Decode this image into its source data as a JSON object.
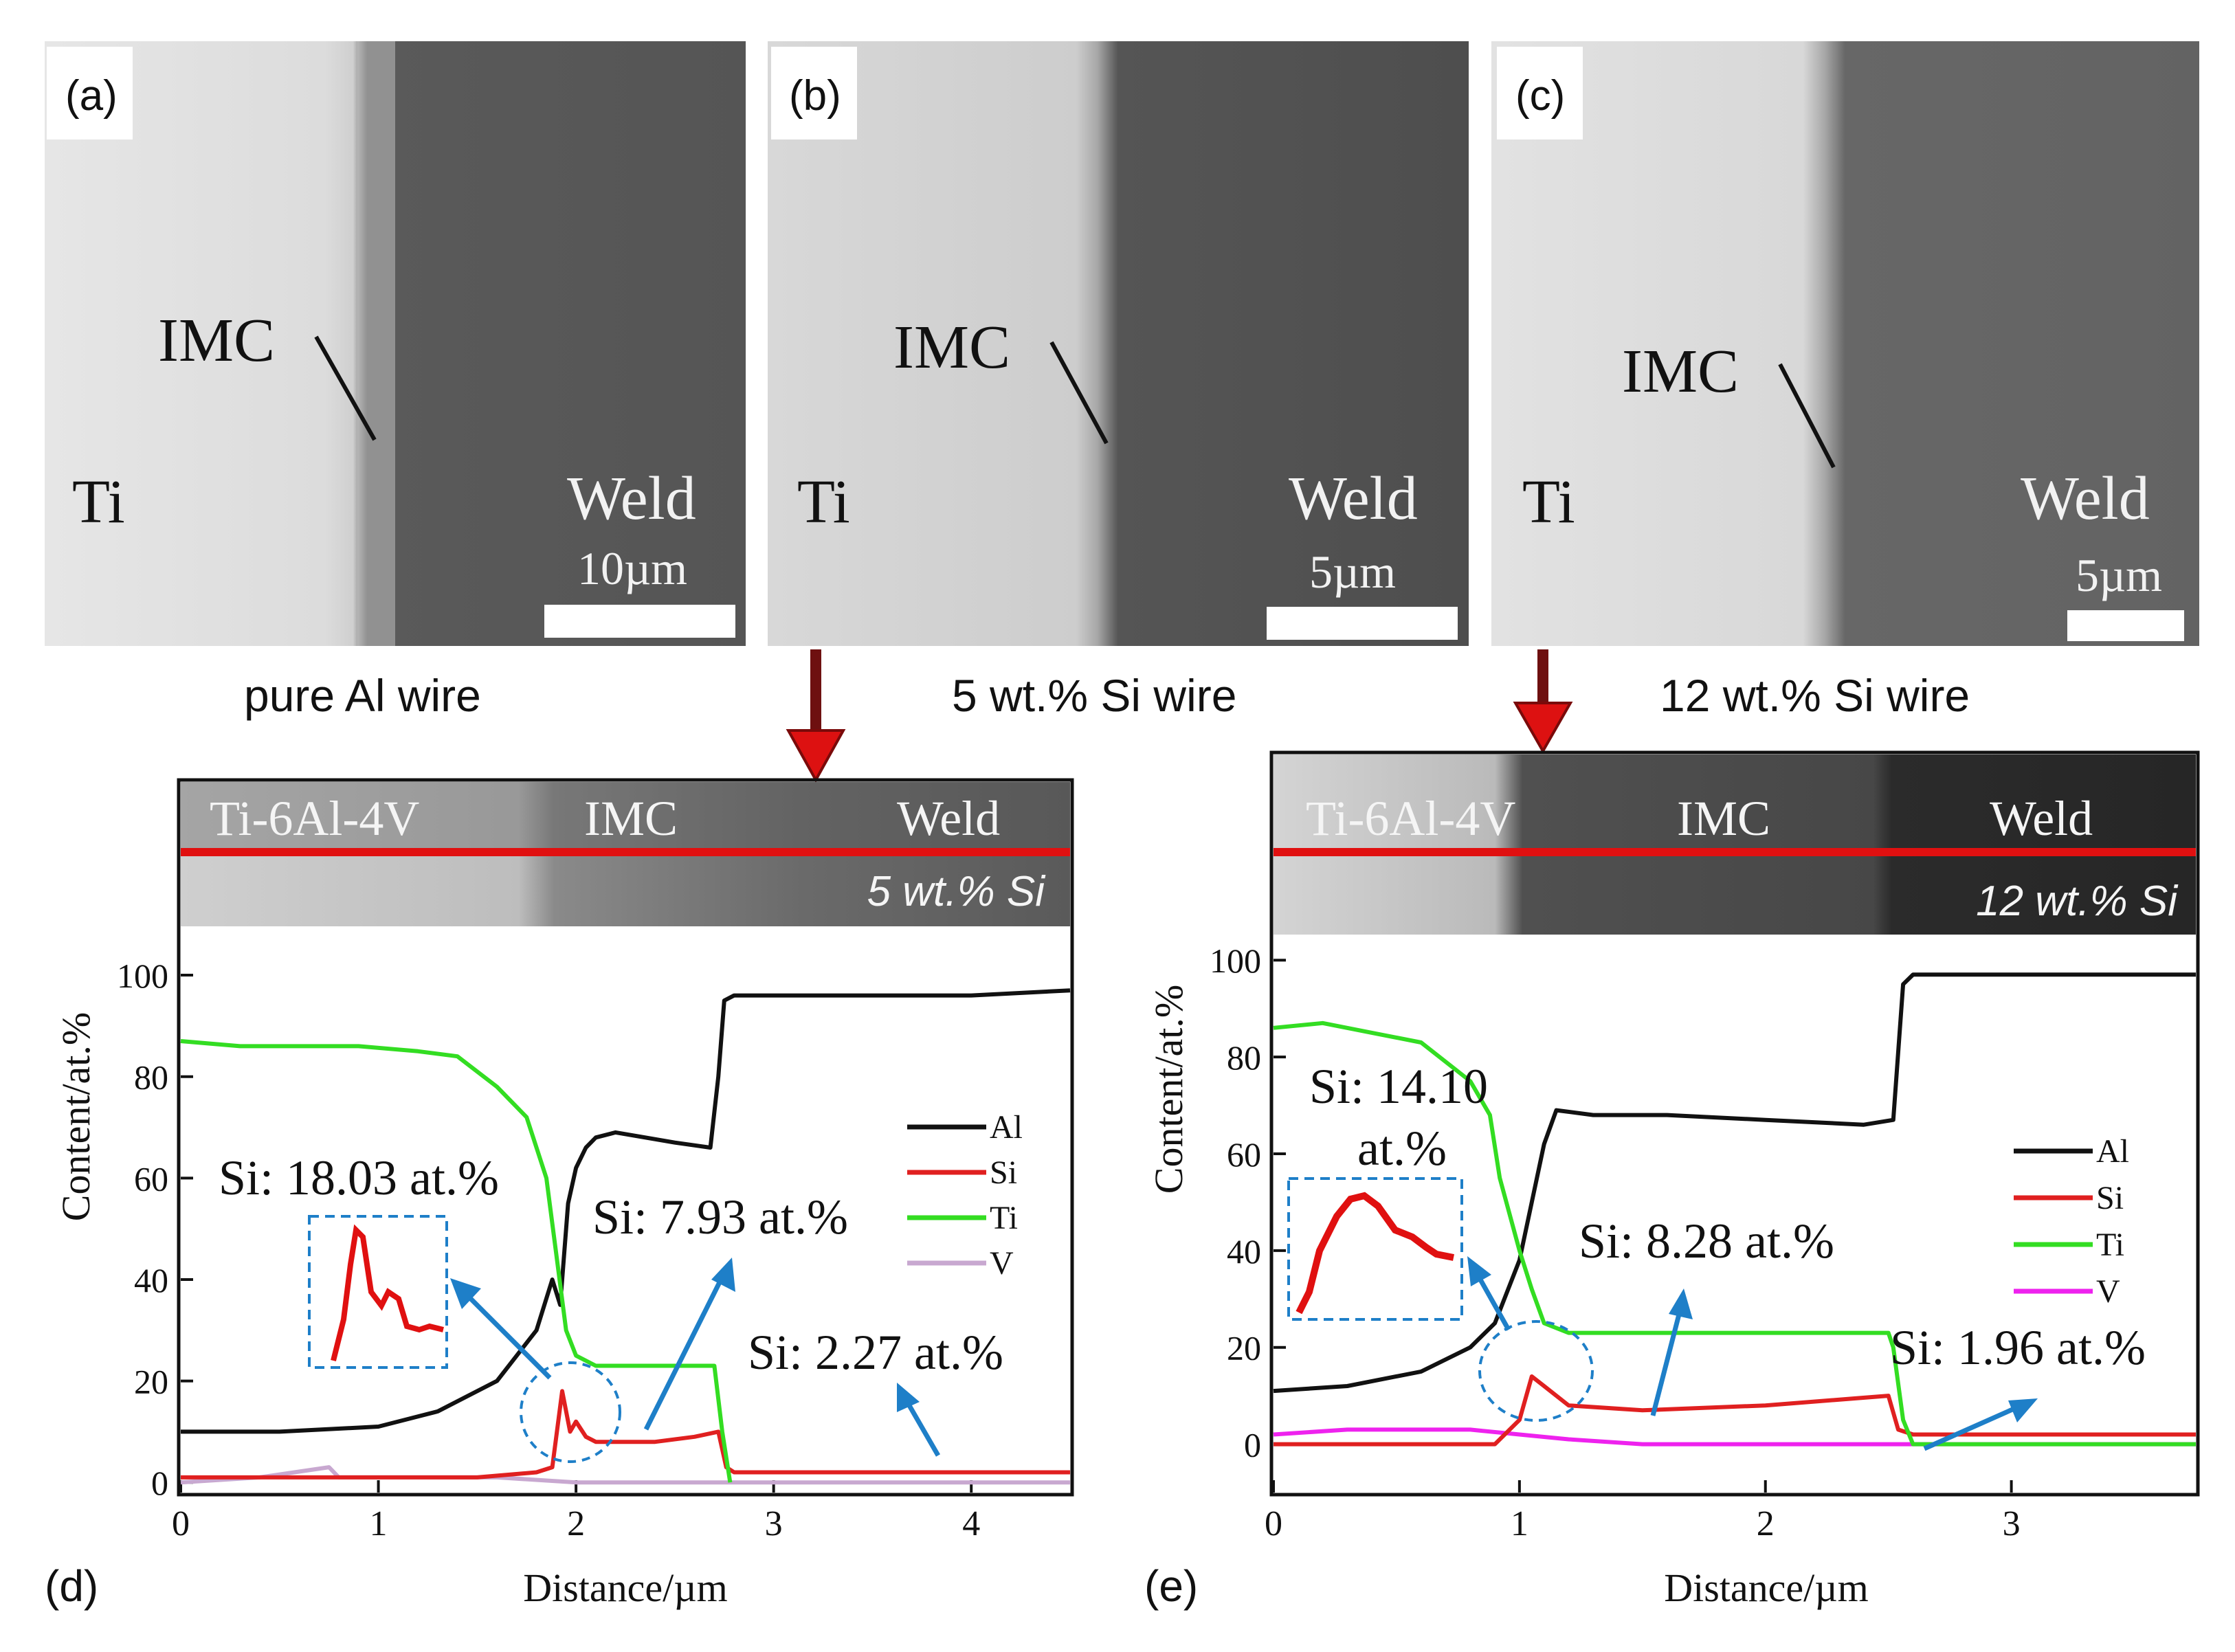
{
  "figure": {
    "panels": [
      {
        "letter": "(a)",
        "phase_left": "Ti",
        "phase_right": "Weld",
        "interface_label": "IMC",
        "scale_bar": "10µm",
        "caption": "pure Al wire"
      },
      {
        "letter": "(b)",
        "phase_left": "Ti",
        "phase_right": "Weld",
        "interface_label": "IMC",
        "scale_bar": "5µm",
        "caption": "5 wt.% Si wire"
      },
      {
        "letter": "(c)",
        "phase_left": "Ti",
        "phase_right": "Weld",
        "interface_label": "IMC",
        "scale_bar": "5µm",
        "caption": "12 wt.% Si wire"
      }
    ],
    "colors": {
      "Al": "#111111",
      "Si": "#e02020",
      "Ti": "#33dd22",
      "V_d": "#c8a8d0",
      "V_e": "#ee22ee",
      "arrow": "#1e7fc8",
      "red_line": "#e01010",
      "red_arrow": "#dd1111"
    }
  },
  "chart_data": [
    {
      "type": "line",
      "panel_letter": "(d)",
      "strip": {
        "left": "Ti-6Al-4V",
        "middle": "IMC",
        "right": "Weld",
        "tag": "5 wt.% Si"
      },
      "xlabel": "Distance/µm",
      "ylabel": "Content/at.%",
      "xlim": [
        0,
        4.5
      ],
      "ylim": [
        -2,
        108
      ],
      "xticks": [
        "0",
        "1",
        "2",
        "3",
        "4"
      ],
      "xtick_values": [
        0,
        1,
        2,
        3,
        4
      ],
      "yticks": [
        "0",
        "20",
        "40",
        "60",
        "80",
        "100"
      ],
      "ytick_values": [
        0,
        20,
        40,
        60,
        80,
        100
      ],
      "legend": [
        "Al",
        "Si",
        "Ti",
        "V"
      ],
      "series": [
        {
          "name": "Al",
          "x": [
            0,
            0.5,
            1.0,
            1.3,
            1.6,
            1.8,
            1.88,
            1.92,
            1.96,
            2.0,
            2.05,
            2.1,
            2.2,
            2.5,
            2.68,
            2.72,
            2.75,
            2.8,
            3.0,
            3.5,
            4.0,
            4.5
          ],
          "y": [
            10,
            10,
            11,
            14,
            20,
            30,
            40,
            35,
            55,
            62,
            66,
            68,
            69,
            67,
            66,
            80,
            95,
            96,
            96,
            96,
            96,
            97
          ]
        },
        {
          "name": "Si",
          "x": [
            0,
            0.5,
            1.0,
            1.5,
            1.8,
            1.88,
            1.93,
            1.97,
            2.0,
            2.05,
            2.1,
            2.2,
            2.4,
            2.6,
            2.72,
            2.76,
            2.8,
            3.0,
            3.5,
            4.0,
            4.5
          ],
          "y": [
            1,
            1,
            1,
            1,
            2,
            3,
            18,
            10,
            12,
            9,
            8,
            8,
            8,
            9,
            10,
            3,
            2,
            2,
            2,
            2,
            2
          ]
        },
        {
          "name": "Ti",
          "x": [
            0,
            0.3,
            0.6,
            0.9,
            1.2,
            1.4,
            1.6,
            1.75,
            1.85,
            1.9,
            1.95,
            2.0,
            2.1,
            2.3,
            2.5,
            2.7,
            2.74,
            2.78
          ],
          "y": [
            87,
            86,
            86,
            86,
            85,
            84,
            78,
            72,
            60,
            45,
            30,
            25,
            23,
            23,
            23,
            23,
            10,
            0
          ]
        },
        {
          "name": "V",
          "x": [
            0,
            0.4,
            0.75,
            0.8,
            1.2,
            1.6,
            2.0,
            2.5,
            3.0,
            3.5,
            4.0,
            4.5
          ],
          "y": [
            0,
            1,
            3,
            1,
            1,
            1,
            0,
            0,
            0,
            0,
            0,
            0
          ]
        }
      ],
      "annotations": [
        {
          "text": "Si: 18.03 at.%"
        },
        {
          "text": "Si: 7.93 at.%"
        },
        {
          "text": "Si: 2.27 at.%"
        }
      ]
    },
    {
      "type": "line",
      "panel_letter": "(e)",
      "strip": {
        "left": "Ti-6Al-4V",
        "middle": "IMC",
        "right": "Weld",
        "tag": "12 wt.% Si"
      },
      "xlabel": "Distance/µm",
      "ylabel": "Content/at.%",
      "xlim": [
        0,
        3.75
      ],
      "ylim": [
        -10,
        105
      ],
      "xticks": [
        "0",
        "1",
        "2",
        "3"
      ],
      "xtick_values": [
        0,
        1,
        2,
        3
      ],
      "yticks": [
        "0",
        "20",
        "40",
        "60",
        "80",
        "100"
      ],
      "ytick_values": [
        0,
        20,
        40,
        60,
        80,
        100
      ],
      "legend": [
        "Al",
        "Si",
        "Ti",
        "V"
      ],
      "series": [
        {
          "name": "Al",
          "x": [
            0,
            0.3,
            0.6,
            0.8,
            0.9,
            1.0,
            1.05,
            1.1,
            1.15,
            1.3,
            1.6,
            2.0,
            2.4,
            2.52,
            2.56,
            2.6,
            3.0,
            3.5,
            3.75
          ],
          "y": [
            11,
            12,
            15,
            20,
            25,
            38,
            50,
            62,
            69,
            68,
            68,
            67,
            66,
            67,
            95,
            97,
            97,
            97,
            97
          ]
        },
        {
          "name": "Si",
          "x": [
            0,
            0.5,
            0.9,
            1.0,
            1.05,
            1.1,
            1.2,
            1.5,
            2.0,
            2.5,
            2.54,
            2.6,
            3.0,
            3.5,
            3.75
          ],
          "y": [
            0,
            0,
            0,
            5,
            14,
            12,
            8,
            7,
            8,
            10,
            3,
            2,
            2,
            2,
            2
          ]
        },
        {
          "name": "Ti",
          "x": [
            0,
            0.2,
            0.4,
            0.6,
            0.8,
            0.88,
            0.92,
            1.0,
            1.05,
            1.1,
            1.2,
            1.5,
            2.0,
            2.5,
            2.52,
            2.56,
            2.6,
            3.0,
            3.75
          ],
          "y": [
            86,
            87,
            85,
            83,
            75,
            68,
            55,
            40,
            32,
            25,
            23,
            23,
            23,
            23,
            20,
            5,
            0,
            0,
            0
          ]
        },
        {
          "name": "V",
          "x": [
            0,
            0.3,
            0.5,
            0.8,
            1.0,
            1.2,
            1.5,
            2.0,
            2.5,
            3.0,
            3.75
          ],
          "y": [
            2,
            3,
            3,
            3,
            2,
            1,
            0,
            0,
            0,
            0,
            0
          ]
        }
      ],
      "annotations": [
        {
          "text": "Si: 14.10"
        },
        {
          "text": "at.%"
        },
        {
          "text": "Si: 8.28 at.%"
        },
        {
          "text": "Si: 1.96 at.%"
        }
      ]
    }
  ]
}
